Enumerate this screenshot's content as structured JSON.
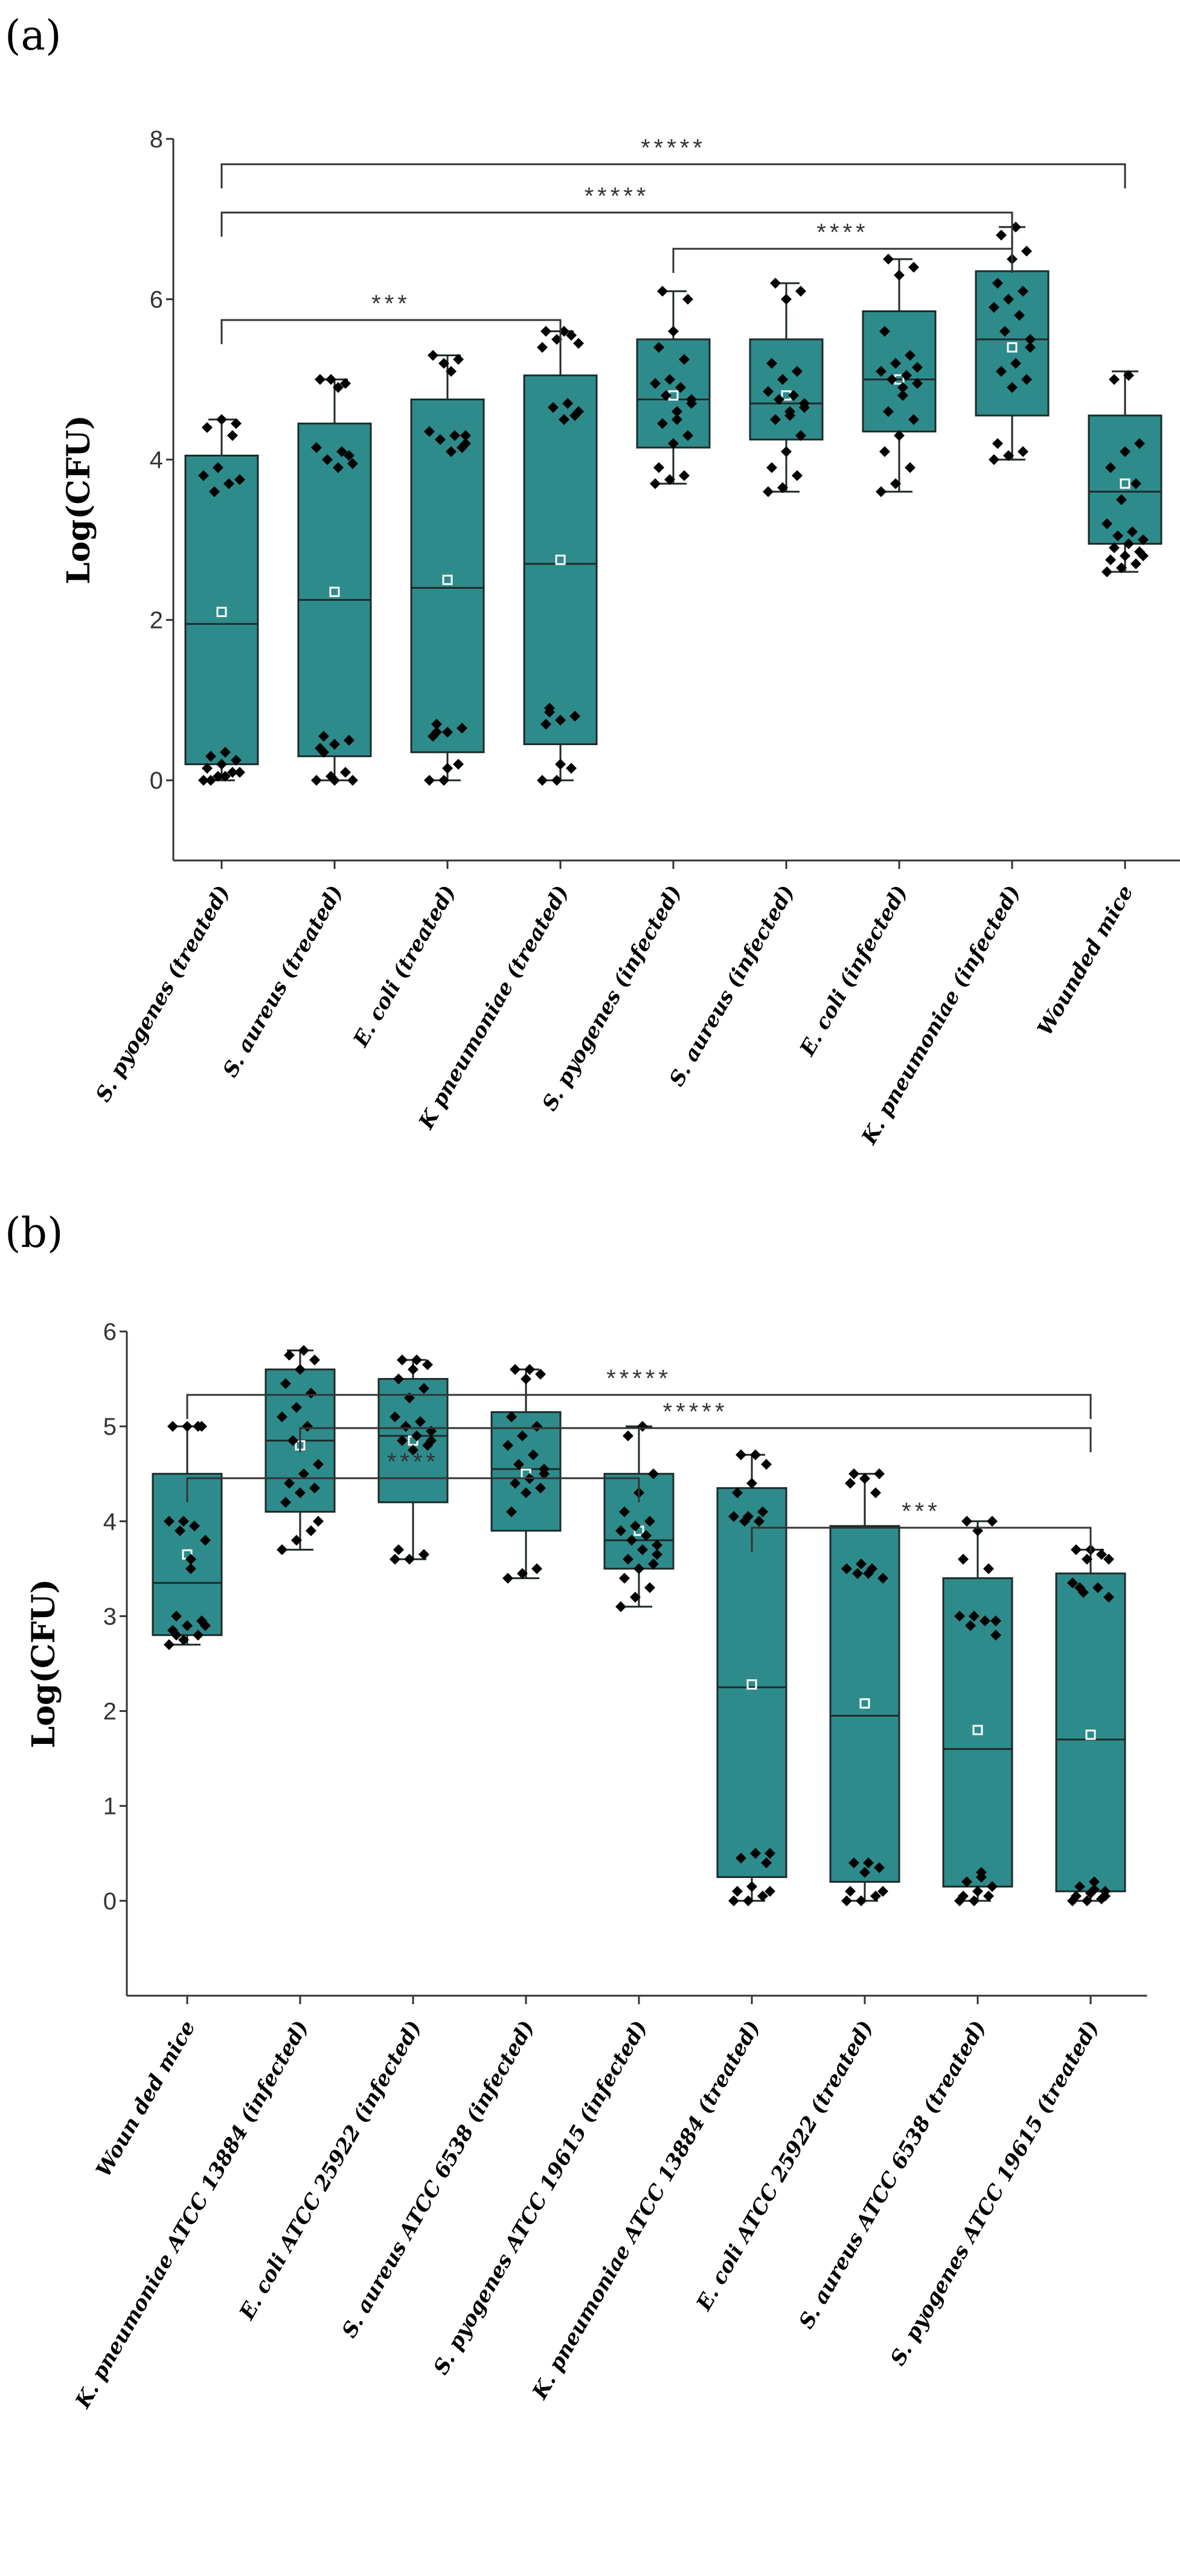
{
  "chart_data": [
    {
      "panel_label": "(a)",
      "type": "box",
      "ylabel": "Log(CFU)",
      "ylim": [
        -1,
        8
      ],
      "yticks": [
        0,
        2,
        4,
        6,
        8
      ],
      "categories": [
        "S. pyogenes (treated)",
        "S. aureus (treated)",
        "E. coli (treated)",
        "K pneumoniae (treated)",
        "S. pyogenes (infected)",
        "S. aureus (infected)",
        "E. coli (infected)",
        "K. pneumoniae (infected)",
        "Wounded mice"
      ],
      "boxes": [
        {
          "min": 0.0,
          "q1": 0.2,
          "median": 1.95,
          "q3": 4.05,
          "max": 4.5,
          "mean": 2.1
        },
        {
          "min": 0.0,
          "q1": 0.3,
          "median": 2.25,
          "q3": 4.45,
          "max": 5.0,
          "mean": 2.35
        },
        {
          "min": 0.0,
          "q1": 0.35,
          "median": 2.4,
          "q3": 4.75,
          "max": 5.3,
          "mean": 2.5
        },
        {
          "min": 0.0,
          "q1": 0.45,
          "median": 2.7,
          "q3": 5.05,
          "max": 5.6,
          "mean": 2.75
        },
        {
          "min": 3.7,
          "q1": 4.15,
          "median": 4.75,
          "q3": 5.5,
          "max": 6.1,
          "mean": 4.8
        },
        {
          "min": 3.6,
          "q1": 4.25,
          "median": 4.7,
          "q3": 5.5,
          "max": 6.2,
          "mean": 4.8
        },
        {
          "min": 3.6,
          "q1": 4.35,
          "median": 5.0,
          "q3": 5.85,
          "max": 6.5,
          "mean": 5.0
        },
        {
          "min": 4.0,
          "q1": 4.55,
          "median": 5.5,
          "q3": 6.35,
          "max": 6.9,
          "mean": 5.4
        },
        {
          "min": 2.6,
          "q1": 2.95,
          "median": 3.6,
          "q3": 4.55,
          "max": 5.1,
          "mean": 3.7
        }
      ],
      "points": [
        [
          0.0,
          0.05,
          0.1,
          0.15,
          0.2,
          0.25,
          0.3,
          0.05,
          0.1,
          3.6,
          3.7,
          3.8,
          3.9,
          4.3,
          4.4,
          4.5,
          4.45,
          0.0,
          0.35,
          3.75
        ],
        [
          0.0,
          0.05,
          0.1,
          0.4,
          0.45,
          0.5,
          0.55,
          3.9,
          3.95,
          4.0,
          4.1,
          4.15,
          5.0,
          4.95,
          5.0,
          0.0,
          4.05,
          0.35,
          4.9,
          0.0
        ],
        [
          0.0,
          0.0,
          0.2,
          0.55,
          0.6,
          0.65,
          0.7,
          4.1,
          4.2,
          4.25,
          4.3,
          4.35,
          5.2,
          5.25,
          5.3,
          0.15,
          4.15,
          0.6,
          5.1,
          4.3
        ],
        [
          0.0,
          0.0,
          0.15,
          0.7,
          0.75,
          0.8,
          0.85,
          4.5,
          4.6,
          4.65,
          4.7,
          5.4,
          5.5,
          5.55,
          5.6,
          0.2,
          4.55,
          0.9,
          5.6,
          5.45
        ],
        [
          3.7,
          3.75,
          3.8,
          3.9,
          4.2,
          4.3,
          4.45,
          4.6,
          4.7,
          4.8,
          4.9,
          4.95,
          5.0,
          5.25,
          5.4,
          5.6,
          6.0,
          6.1,
          4.5,
          4.75
        ],
        [
          3.6,
          3.65,
          3.8,
          3.9,
          4.1,
          4.3,
          4.5,
          4.6,
          4.7,
          4.75,
          4.8,
          4.85,
          5.0,
          5.1,
          5.2,
          6.0,
          6.1,
          6.2,
          4.55,
          4.65
        ],
        [
          3.6,
          3.7,
          3.9,
          4.1,
          4.3,
          4.5,
          4.6,
          4.8,
          4.95,
          5.0,
          5.05,
          5.1,
          5.2,
          5.3,
          5.6,
          6.3,
          6.4,
          6.5,
          4.9,
          5.15
        ],
        [
          4.0,
          4.05,
          4.1,
          4.2,
          4.9,
          5.0,
          5.1,
          5.2,
          5.4,
          5.6,
          5.8,
          5.9,
          6.0,
          6.1,
          6.2,
          6.5,
          6.6,
          6.8,
          6.9,
          5.5
        ],
        [
          2.6,
          2.65,
          2.7,
          2.75,
          2.8,
          2.85,
          2.9,
          2.95,
          3.0,
          3.05,
          3.1,
          3.2,
          3.5,
          3.7,
          3.9,
          4.1,
          4.2,
          5.0,
          5.05,
          2.8
        ]
      ],
      "significance": [
        {
          "label": "*****",
          "from": 1,
          "to": 9
        },
        {
          "label": "*****",
          "from": 1,
          "to": 8
        },
        {
          "label": "****",
          "from": 5,
          "to": 8
        },
        {
          "label": "***",
          "from": 1,
          "to": 4
        }
      ]
    },
    {
      "panel_label": "(b)",
      "type": "box",
      "ylabel": "Log(CFU)",
      "ylim": [
        -1,
        6
      ],
      "yticks": [
        0,
        1,
        2,
        3,
        4,
        5,
        6
      ],
      "categories": [
        "Woun ded mice",
        "K. pneumoniae ATCC 13884 (infected)",
        "E. coli ATCC 25922 (infected)",
        "S. aureus ATCC 6538 (infected)",
        "S. pyogenes ATCC 19615 (infected)",
        "K. pneumoniae ATCC 13884 (treated)",
        "E. coli ATCC 25922 (treated)",
        "S. aureus ATCC 6538 (treated)",
        "S. pyogenes ATCC 19615 (treated)"
      ],
      "boxes": [
        {
          "min": 2.7,
          "q1": 2.8,
          "median": 3.35,
          "q3": 4.5,
          "max": 5.0,
          "mean": 3.65
        },
        {
          "min": 3.7,
          "q1": 4.1,
          "median": 4.85,
          "q3": 5.6,
          "max": 5.8,
          "mean": 4.8
        },
        {
          "min": 3.6,
          "q1": 4.2,
          "median": 4.9,
          "q3": 5.5,
          "max": 5.7,
          "mean": 4.85
        },
        {
          "min": 3.4,
          "q1": 3.9,
          "median": 4.55,
          "q3": 5.15,
          "max": 5.6,
          "mean": 4.5
        },
        {
          "min": 3.1,
          "q1": 3.5,
          "median": 3.8,
          "q3": 4.5,
          "max": 5.0,
          "mean": 3.9
        },
        {
          "min": 0.0,
          "q1": 0.25,
          "median": 2.25,
          "q3": 4.35,
          "max": 4.7,
          "mean": 2.28
        },
        {
          "min": 0.0,
          "q1": 0.2,
          "median": 1.95,
          "q3": 3.95,
          "max": 4.5,
          "mean": 2.08
        },
        {
          "min": 0.0,
          "q1": 0.15,
          "median": 1.6,
          "q3": 3.4,
          "max": 4.0,
          "mean": 1.8
        },
        {
          "min": 0.0,
          "q1": 0.1,
          "median": 1.7,
          "q3": 3.45,
          "max": 3.7,
          "mean": 1.75
        }
      ],
      "points": [
        [
          2.7,
          2.75,
          2.8,
          2.85,
          2.9,
          2.95,
          3.0,
          3.5,
          3.8,
          3.9,
          3.95,
          4.0,
          4.0,
          5.0,
          5.0,
          5.0,
          5.0,
          2.8,
          3.6,
          2.9
        ],
        [
          3.7,
          3.8,
          3.9,
          4.2,
          4.3,
          4.35,
          4.4,
          4.5,
          4.6,
          4.85,
          5.0,
          5.1,
          5.2,
          5.35,
          5.45,
          5.6,
          5.7,
          5.75,
          5.8,
          4.0
        ],
        [
          3.6,
          3.6,
          3.65,
          3.7,
          4.75,
          4.8,
          4.85,
          4.9,
          4.95,
          5.0,
          5.05,
          5.1,
          5.3,
          5.4,
          5.5,
          5.6,
          5.65,
          5.7,
          5.7,
          4.85
        ],
        [
          3.4,
          3.45,
          3.5,
          4.1,
          4.3,
          4.35,
          4.4,
          4.45,
          4.5,
          4.6,
          4.7,
          4.8,
          4.9,
          5.0,
          5.1,
          5.5,
          5.55,
          5.6,
          5.6,
          4.55
        ],
        [
          3.1,
          3.2,
          3.3,
          3.4,
          3.5,
          3.55,
          3.6,
          3.7,
          3.75,
          3.8,
          3.85,
          3.9,
          3.95,
          4.0,
          4.1,
          4.3,
          4.5,
          4.9,
          5.0,
          3.65
        ],
        [
          0.0,
          0.0,
          0.05,
          0.1,
          0.15,
          0.4,
          0.45,
          0.5,
          0.5,
          4.0,
          4.0,
          4.05,
          4.05,
          4.1,
          4.3,
          4.4,
          4.6,
          4.7,
          4.7,
          0.1
        ],
        [
          0.0,
          0.0,
          0.05,
          0.1,
          0.3,
          0.35,
          0.4,
          0.4,
          3.4,
          3.45,
          3.5,
          3.5,
          3.55,
          4.3,
          4.4,
          4.45,
          4.5,
          4.5,
          3.45,
          0.1
        ],
        [
          0.0,
          0.0,
          0.05,
          0.05,
          0.1,
          0.15,
          0.2,
          0.3,
          2.8,
          2.9,
          2.95,
          3.0,
          3.0,
          3.5,
          3.6,
          3.9,
          4.0,
          4.0,
          0.25,
          2.95
        ],
        [
          0.0,
          0.0,
          0.02,
          0.05,
          0.08,
          0.1,
          0.15,
          0.2,
          3.2,
          3.25,
          3.3,
          3.35,
          3.6,
          3.65,
          3.7,
          3.7,
          0.05,
          3.3,
          0.12,
          3.6
        ]
      ],
      "significance": [
        {
          "label": "*****",
          "from": 1,
          "to": 9
        },
        {
          "label": "*****",
          "from": 2,
          "to": 9
        },
        {
          "label": "****",
          "from": 1,
          "to": 5
        },
        {
          "label": "***",
          "from": 6,
          "to": 9
        }
      ]
    }
  ]
}
